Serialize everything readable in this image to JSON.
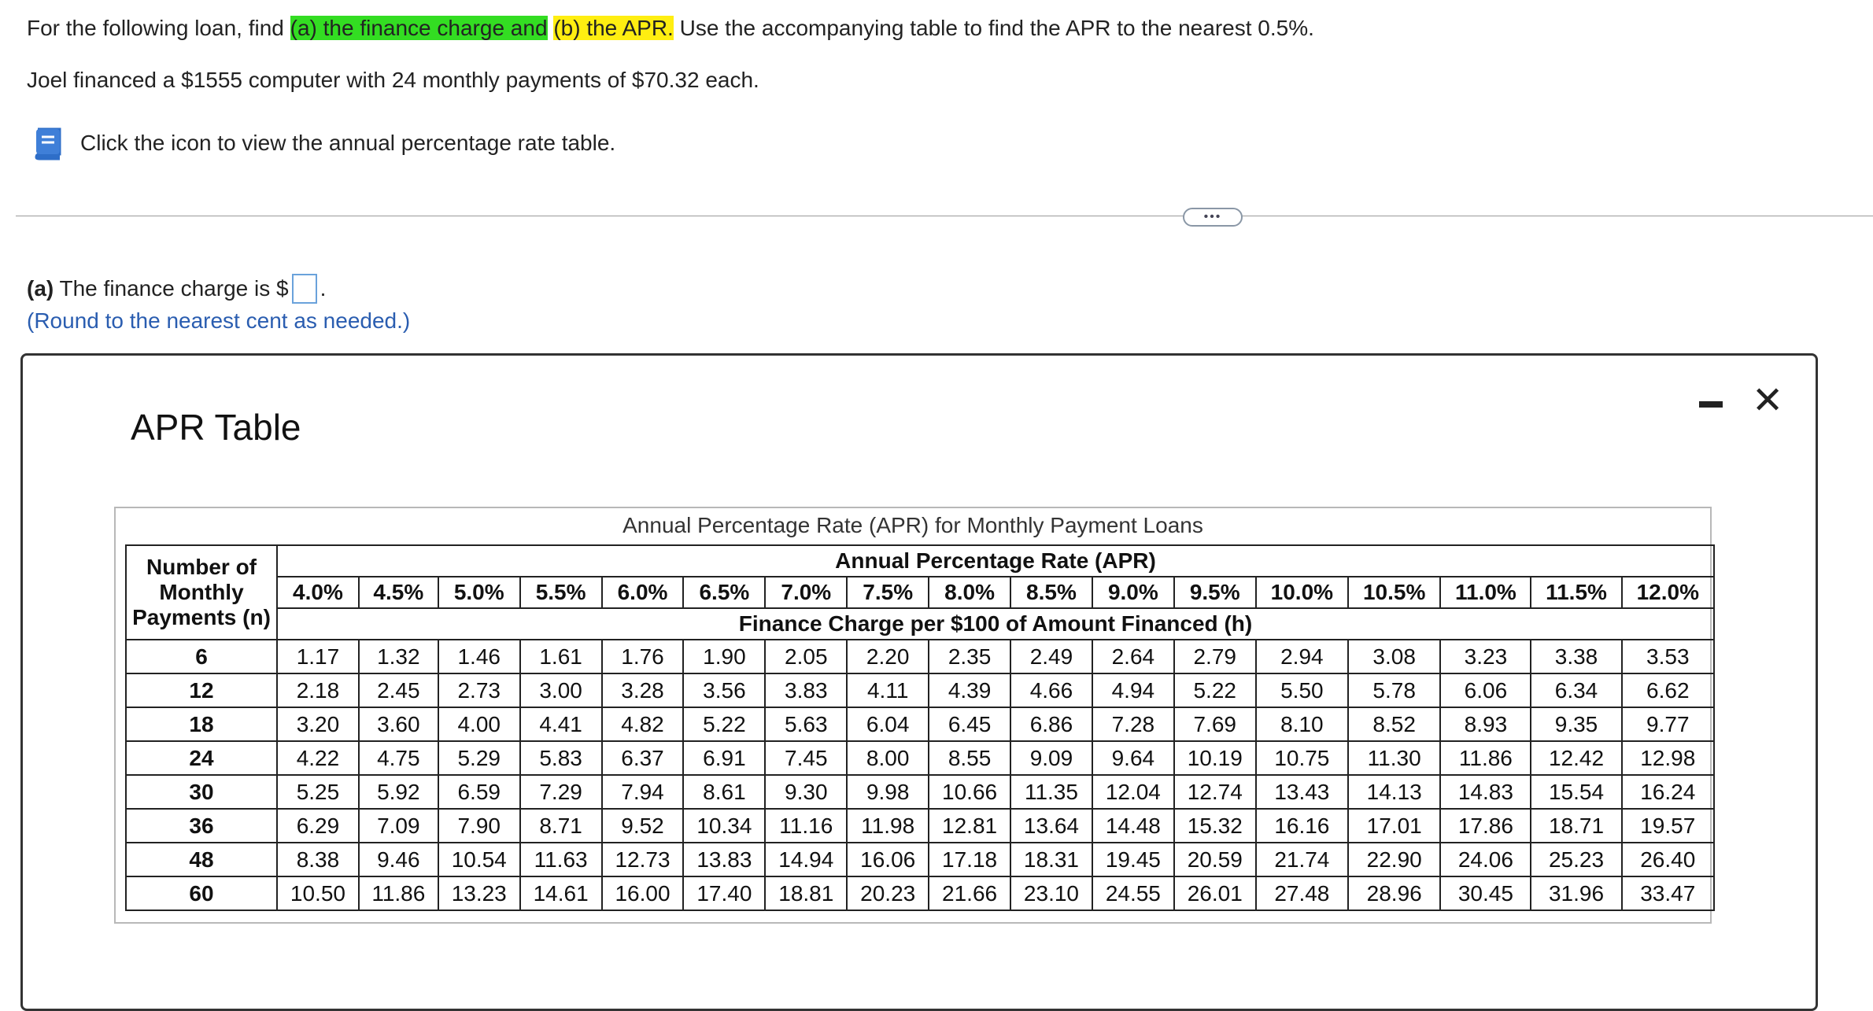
{
  "question": {
    "line1_prefix": "For the following loan, find ",
    "line1_highlight_a": "(a) the finance charge and",
    "line1_highlight_b": "(b) the APR.",
    "line1_suffix": " Use the accompanying table to find the APR to the nearest 0.5%.",
    "line2": "Joel financed a $1555 computer with 24 monthly payments of $70.32 each.",
    "icon_text": "Click the icon to view the annual percentage rate table."
  },
  "more_button": "•••",
  "part_a": {
    "label": "(a)",
    "text": " The finance charge is $",
    "suffix": ".",
    "answer_value": "",
    "note": "(Round to the nearest cent as needed.)"
  },
  "modal": {
    "title": "APR Table",
    "close_label": "✕"
  },
  "apr_table": {
    "caption": "Annual Percentage Rate (APR) for Monthly Payment Loans",
    "n_header": [
      "Number of",
      "Monthly",
      "Payments (n)"
    ],
    "apr_header": "Annual Percentage Rate (APR)",
    "finance_header": "Finance Charge per $100 of Amount Financed (h)",
    "rates": [
      "4.0%",
      "4.5%",
      "5.0%",
      "5.5%",
      "6.0%",
      "6.5%",
      "7.0%",
      "7.5%",
      "8.0%",
      "8.5%",
      "9.0%",
      "9.5%",
      "10.0%",
      "10.5%",
      "11.0%",
      "11.5%",
      "12.0%"
    ],
    "rows": [
      {
        "n": "6",
        "values": [
          "1.17",
          "1.32",
          "1.46",
          "1.61",
          "1.76",
          "1.90",
          "2.05",
          "2.20",
          "2.35",
          "2.49",
          "2.64",
          "2.79",
          "2.94",
          "3.08",
          "3.23",
          "3.38",
          "3.53"
        ]
      },
      {
        "n": "12",
        "values": [
          "2.18",
          "2.45",
          "2.73",
          "3.00",
          "3.28",
          "3.56",
          "3.83",
          "4.11",
          "4.39",
          "4.66",
          "4.94",
          "5.22",
          "5.50",
          "5.78",
          "6.06",
          "6.34",
          "6.62"
        ]
      },
      {
        "n": "18",
        "values": [
          "3.20",
          "3.60",
          "4.00",
          "4.41",
          "4.82",
          "5.22",
          "5.63",
          "6.04",
          "6.45",
          "6.86",
          "7.28",
          "7.69",
          "8.10",
          "8.52",
          "8.93",
          "9.35",
          "9.77"
        ]
      },
      {
        "n": "24",
        "values": [
          "4.22",
          "4.75",
          "5.29",
          "5.83",
          "6.37",
          "6.91",
          "7.45",
          "8.00",
          "8.55",
          "9.09",
          "9.64",
          "10.19",
          "10.75",
          "11.30",
          "11.86",
          "12.42",
          "12.98"
        ]
      },
      {
        "n": "30",
        "values": [
          "5.25",
          "5.92",
          "6.59",
          "7.29",
          "7.94",
          "8.61",
          "9.30",
          "9.98",
          "10.66",
          "11.35",
          "12.04",
          "12.74",
          "13.43",
          "14.13",
          "14.83",
          "15.54",
          "16.24"
        ]
      },
      {
        "n": "36",
        "values": [
          "6.29",
          "7.09",
          "7.90",
          "8.71",
          "9.52",
          "10.34",
          "11.16",
          "11.98",
          "12.81",
          "13.64",
          "14.48",
          "15.32",
          "16.16",
          "17.01",
          "17.86",
          "18.71",
          "19.57"
        ]
      },
      {
        "n": "48",
        "values": [
          "8.38",
          "9.46",
          "10.54",
          "11.63",
          "12.73",
          "13.83",
          "14.94",
          "16.06",
          "17.18",
          "18.31",
          "19.45",
          "20.59",
          "21.74",
          "22.90",
          "24.06",
          "25.23",
          "26.40"
        ]
      },
      {
        "n": "60",
        "values": [
          "10.50",
          "11.86",
          "13.23",
          "14.61",
          "16.00",
          "17.40",
          "18.81",
          "20.23",
          "21.66",
          "23.10",
          "24.55",
          "26.01",
          "27.48",
          "28.96",
          "30.45",
          "31.96",
          "33.47"
        ]
      }
    ]
  },
  "colors": {
    "highlight_green": "#33dd22",
    "highlight_yellow": "#ffee11",
    "hint_blue": "#2a5db0",
    "icon_blue": "#3f7fd8"
  }
}
